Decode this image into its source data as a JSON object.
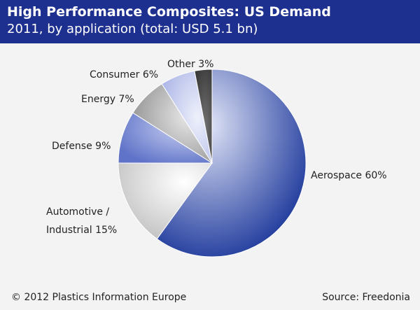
{
  "header": {
    "title": "High Performance Composites: US Demand",
    "subtitle": "2011, by application (total: USD 5.1 bn)"
  },
  "chart_data": {
    "type": "pie",
    "title": "High Performance Composites: US Demand",
    "subtitle": "2011, by application (total: USD 5.1 bn)",
    "unit": "%",
    "slices": [
      {
        "label": "Aerospace 60%",
        "name": "Aerospace",
        "value": 60,
        "color": "#1f3a9c"
      },
      {
        "label": "Automotive / Industrial 15%",
        "label_lines": [
          "Automotive /",
          "Industrial 15%"
        ],
        "name": "Automotive / Industrial",
        "value": 15,
        "color": "#d6d6d6"
      },
      {
        "label": "Defense 9%",
        "name": "Defense",
        "value": 9,
        "color": "#7f8fd4"
      },
      {
        "label": "Energy 7%",
        "name": "Energy",
        "value": 7,
        "color": "#a8a8a8"
      },
      {
        "label": "Consumer 6%",
        "name": "Consumer",
        "value": 6,
        "color": "#b8c0ea"
      },
      {
        "label": "Other 3%",
        "name": "Other",
        "value": 3,
        "color": "#4a4a4a"
      }
    ],
    "legend": "none",
    "start": "top, clockwise"
  },
  "footer": {
    "copyright": "© 2012 Plastics Information Europe",
    "source": "Source: Freedonia"
  }
}
